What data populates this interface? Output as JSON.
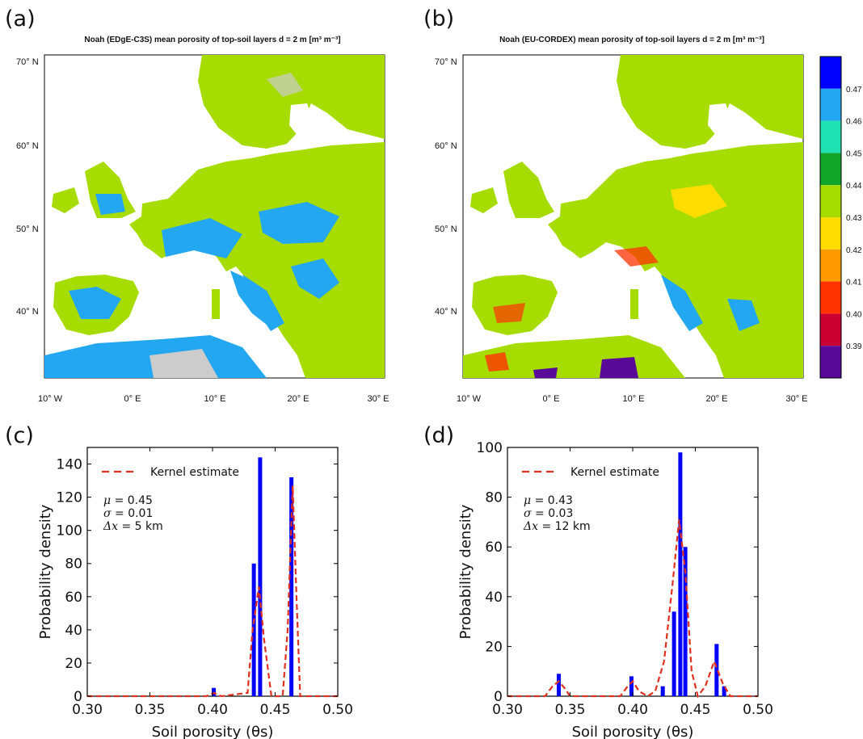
{
  "panels": {
    "a": {
      "label": "(a)",
      "title": "Noah (EDgE-C3S) mean porosity of top-soil layers d = 2 m [m³ m⁻³]"
    },
    "b": {
      "label": "(b)",
      "title": "Noah (EU-CORDEX) mean porosity of top-soil layers d = 2 m [m³ m⁻³]"
    },
    "c": {
      "label": "(c)"
    },
    "d": {
      "label": "(d)"
    }
  },
  "map_axes": {
    "lat_ticks": [
      "70° N",
      "60° N",
      "50° N",
      "40° N"
    ],
    "lon_ticks": [
      "10° W",
      "0° E",
      "10° E",
      "20° E",
      "30° E"
    ]
  },
  "colorbar": {
    "tick_labels": [
      "0.47",
      "0.46",
      "0.45",
      "0.44",
      "0.43",
      "0.42",
      "0.41",
      "0.40",
      "0.39"
    ],
    "colors": [
      "#0000ff",
      "#22a7f0",
      "#1fe0b0",
      "#11a62a",
      "#a6dc00",
      "#ffdd00",
      "#ff9900",
      "#ff3300",
      "#cc0033",
      "#5a0a99"
    ]
  },
  "colors": {
    "land_main": "#a6dc00",
    "land_blue": "#22a7f0",
    "land_gray": "#cccccc",
    "bar": "#0000ff",
    "kde": "#e03020"
  },
  "chart_data": [
    {
      "id": "c",
      "type": "bar",
      "xlabel": "Soil porosity (θs)",
      "ylabel": "Probability density",
      "xlim": [
        0.3,
        0.5
      ],
      "ylim": [
        0,
        150
      ],
      "x_ticks": [
        "0.30",
        "0.35",
        "0.40",
        "0.45",
        "0.50"
      ],
      "y_ticks": [
        "0",
        "20",
        "40",
        "60",
        "80",
        "100",
        "120",
        "140"
      ],
      "legend": "Kernel estimate",
      "legend_position": "top-left",
      "stats": {
        "mu": {
          "symbol": "μ",
          "value": "= 0.45"
        },
        "sigma": {
          "symbol": "σ",
          "value": "= 0.01"
        },
        "dx": {
          "symbol": "Δx",
          "value": "=  5  km"
        }
      },
      "bars": [
        {
          "x": 0.401,
          "value": 5
        },
        {
          "x": 0.433,
          "value": 80
        },
        {
          "x": 0.438,
          "value": 144
        },
        {
          "x": 0.463,
          "value": 132
        }
      ],
      "kde": [
        [
          0.3,
          0
        ],
        [
          0.395,
          0
        ],
        [
          0.401,
          2
        ],
        [
          0.407,
          0
        ],
        [
          0.428,
          2
        ],
        [
          0.432,
          40
        ],
        [
          0.437,
          66
        ],
        [
          0.441,
          35
        ],
        [
          0.447,
          0
        ],
        [
          0.456,
          0
        ],
        [
          0.46,
          40
        ],
        [
          0.464,
          127
        ],
        [
          0.467,
          60
        ],
        [
          0.47,
          0
        ],
        [
          0.5,
          0
        ]
      ]
    },
    {
      "id": "d",
      "type": "bar",
      "xlabel": "Soil porosity (θs)",
      "ylabel": "Probability density",
      "xlim": [
        0.3,
        0.5
      ],
      "ylim": [
        0,
        100
      ],
      "x_ticks": [
        "0.30",
        "0.35",
        "0.40",
        "0.45",
        "0.50"
      ],
      "y_ticks": [
        "0",
        "20",
        "40",
        "60",
        "80",
        "100"
      ],
      "legend": "Kernel estimate",
      "legend_position": "top-left",
      "stats": {
        "mu": {
          "symbol": "μ",
          "value": "= 0.43"
        },
        "sigma": {
          "symbol": "σ",
          "value": "= 0.03"
        },
        "dx": {
          "symbol": "Δx",
          "value": "=  12  km"
        }
      },
      "bars": [
        {
          "x": 0.341,
          "value": 9
        },
        {
          "x": 0.399,
          "value": 8
        },
        {
          "x": 0.424,
          "value": 4
        },
        {
          "x": 0.433,
          "value": 34
        },
        {
          "x": 0.438,
          "value": 98
        },
        {
          "x": 0.442,
          "value": 60
        },
        {
          "x": 0.467,
          "value": 21
        },
        {
          "x": 0.473,
          "value": 4
        }
      ],
      "kde": [
        [
          0.3,
          0
        ],
        [
          0.33,
          0
        ],
        [
          0.336,
          4
        ],
        [
          0.341,
          6
        ],
        [
          0.346,
          3
        ],
        [
          0.35,
          0
        ],
        [
          0.39,
          0
        ],
        [
          0.396,
          4
        ],
        [
          0.4,
          6
        ],
        [
          0.405,
          2
        ],
        [
          0.412,
          0
        ],
        [
          0.418,
          2
        ],
        [
          0.425,
          14
        ],
        [
          0.432,
          46
        ],
        [
          0.437,
          71
        ],
        [
          0.442,
          50
        ],
        [
          0.447,
          10
        ],
        [
          0.452,
          0
        ],
        [
          0.458,
          4
        ],
        [
          0.465,
          14
        ],
        [
          0.472,
          5
        ],
        [
          0.478,
          0
        ],
        [
          0.5,
          0
        ]
      ]
    }
  ]
}
